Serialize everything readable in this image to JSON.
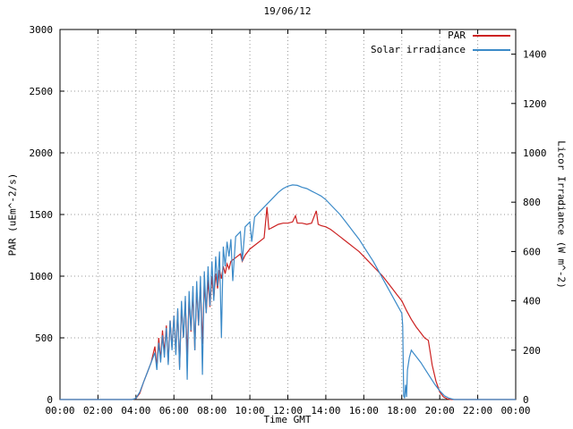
{
  "chart_data": {
    "type": "line",
    "title": "19/06/12",
    "xlabel": "Time GMT",
    "ylabel_left": "PAR (uEm^-2/s)",
    "ylabel_right": "Licor Irradiance (W m^-2)",
    "grid": true,
    "legend_position": "top-right",
    "x_range_hours": [
      0,
      24
    ],
    "y_left_range": [
      0,
      3000
    ],
    "y_right_range": [
      0,
      1500
    ],
    "x_tick_hours": [
      0,
      2,
      4,
      6,
      8,
      10,
      12,
      14,
      16,
      18,
      20,
      22,
      24
    ],
    "x_tick_labels": [
      "00:00",
      "02:00",
      "04:00",
      "06:00",
      "08:00",
      "10:00",
      "12:00",
      "14:00",
      "16:00",
      "18:00",
      "20:00",
      "22:00",
      "00:00"
    ],
    "y_left_ticks": [
      0,
      500,
      1000,
      1500,
      2000,
      2500,
      3000
    ],
    "y_right_ticks": [
      0,
      200,
      400,
      600,
      800,
      1000,
      1200,
      1400
    ],
    "series": [
      {
        "name": "PAR",
        "axis": "left",
        "color": "#cc2222",
        "units": "uEm^-2/s",
        "points": [
          [
            0,
            0
          ],
          [
            0.5,
            0
          ],
          [
            1,
            0
          ],
          [
            1.5,
            0
          ],
          [
            2,
            0
          ],
          [
            2.5,
            0
          ],
          [
            3,
            0
          ],
          [
            3.5,
            0
          ],
          [
            3.8,
            0
          ],
          [
            4.0,
            8
          ],
          [
            4.2,
            50
          ],
          [
            4.4,
            140
          ],
          [
            4.6,
            220
          ],
          [
            4.8,
            300
          ],
          [
            5.0,
            430
          ],
          [
            5.1,
            260
          ],
          [
            5.2,
            500
          ],
          [
            5.3,
            320
          ],
          [
            5.4,
            560
          ],
          [
            5.5,
            380
          ],
          [
            5.6,
            600
          ],
          [
            5.7,
            300
          ],
          [
            5.8,
            640
          ],
          [
            5.9,
            420
          ],
          [
            6.0,
            680
          ],
          [
            6.1,
            380
          ],
          [
            6.2,
            720
          ],
          [
            6.3,
            260
          ],
          [
            6.4,
            760
          ],
          [
            6.5,
            500
          ],
          [
            6.6,
            800
          ],
          [
            6.7,
            350
          ],
          [
            6.8,
            830
          ],
          [
            6.9,
            550
          ],
          [
            7.0,
            870
          ],
          [
            7.1,
            400
          ],
          [
            7.2,
            900
          ],
          [
            7.3,
            600
          ],
          [
            7.4,
            930
          ],
          [
            7.5,
            450
          ],
          [
            7.6,
            950
          ],
          [
            7.7,
            700
          ],
          [
            7.8,
            970
          ],
          [
            7.9,
            750
          ],
          [
            8.0,
            1000
          ],
          [
            8.1,
            820
          ],
          [
            8.2,
            1020
          ],
          [
            8.3,
            900
          ],
          [
            8.4,
            1050
          ],
          [
            8.5,
            980
          ],
          [
            8.6,
            1080
          ],
          [
            8.7,
            1020
          ],
          [
            8.8,
            1100
          ],
          [
            8.9,
            1060
          ],
          [
            9.0,
            1120
          ],
          [
            9.25,
            1150
          ],
          [
            9.5,
            1180
          ],
          [
            9.6,
            1120
          ],
          [
            9.75,
            1170
          ],
          [
            10.0,
            1220
          ],
          [
            10.25,
            1250
          ],
          [
            10.5,
            1280
          ],
          [
            10.75,
            1310
          ],
          [
            10.9,
            1560
          ],
          [
            11.0,
            1380
          ],
          [
            11.25,
            1400
          ],
          [
            11.5,
            1420
          ],
          [
            11.75,
            1430
          ],
          [
            12.0,
            1430
          ],
          [
            12.25,
            1440
          ],
          [
            12.4,
            1490
          ],
          [
            12.5,
            1430
          ],
          [
            12.75,
            1430
          ],
          [
            13.0,
            1420
          ],
          [
            13.25,
            1430
          ],
          [
            13.5,
            1530
          ],
          [
            13.6,
            1420
          ],
          [
            13.75,
            1410
          ],
          [
            14.0,
            1400
          ],
          [
            14.25,
            1380
          ],
          [
            14.5,
            1350
          ],
          [
            14.75,
            1320
          ],
          [
            15.0,
            1290
          ],
          [
            15.25,
            1260
          ],
          [
            15.5,
            1230
          ],
          [
            15.75,
            1200
          ],
          [
            16.0,
            1160
          ],
          [
            16.25,
            1120
          ],
          [
            16.5,
            1080
          ],
          [
            16.75,
            1040
          ],
          [
            17.0,
            1000
          ],
          [
            17.25,
            950
          ],
          [
            17.5,
            900
          ],
          [
            17.75,
            850
          ],
          [
            18.0,
            800
          ],
          [
            18.25,
            720
          ],
          [
            18.5,
            650
          ],
          [
            18.75,
            590
          ],
          [
            19.0,
            540
          ],
          [
            19.2,
            500
          ],
          [
            19.4,
            480
          ],
          [
            19.5,
            380
          ],
          [
            19.6,
            280
          ],
          [
            19.8,
            150
          ],
          [
            20.0,
            60
          ],
          [
            20.2,
            20
          ],
          [
            20.4,
            5
          ],
          [
            20.6,
            0
          ],
          [
            21,
            0
          ],
          [
            21.5,
            0
          ],
          [
            22,
            0
          ],
          [
            22.5,
            0
          ],
          [
            23,
            0
          ],
          [
            23.5,
            0
          ],
          [
            24,
            0
          ]
        ]
      },
      {
        "name": "Solar irradiance",
        "axis": "right",
        "color": "#3b8ac8",
        "units": "W m^-2",
        "points": [
          [
            0,
            0
          ],
          [
            0.5,
            0
          ],
          [
            1,
            0
          ],
          [
            1.5,
            0
          ],
          [
            2,
            0
          ],
          [
            2.5,
            0
          ],
          [
            3,
            0
          ],
          [
            3.5,
            0
          ],
          [
            3.8,
            0
          ],
          [
            4.0,
            5
          ],
          [
            4.2,
            30
          ],
          [
            4.4,
            70
          ],
          [
            4.6,
            110
          ],
          [
            4.8,
            150
          ],
          [
            5.0,
            190
          ],
          [
            5.1,
            120
          ],
          [
            5.2,
            230
          ],
          [
            5.3,
            150
          ],
          [
            5.4,
            260
          ],
          [
            5.5,
            170
          ],
          [
            5.6,
            290
          ],
          [
            5.7,
            140
          ],
          [
            5.8,
            320
          ],
          [
            5.9,
            200
          ],
          [
            6.0,
            340
          ],
          [
            6.1,
            180
          ],
          [
            6.2,
            370
          ],
          [
            6.3,
            120
          ],
          [
            6.4,
            400
          ],
          [
            6.5,
            250
          ],
          [
            6.6,
            420
          ],
          [
            6.7,
            80
          ],
          [
            6.8,
            440
          ],
          [
            6.9,
            280
          ],
          [
            7.0,
            460
          ],
          [
            7.1,
            200
          ],
          [
            7.2,
            480
          ],
          [
            7.3,
            300
          ],
          [
            7.4,
            500
          ],
          [
            7.5,
            100
          ],
          [
            7.6,
            520
          ],
          [
            7.7,
            350
          ],
          [
            7.8,
            540
          ],
          [
            7.9,
            380
          ],
          [
            8.0,
            560
          ],
          [
            8.1,
            400
          ],
          [
            8.2,
            580
          ],
          [
            8.3,
            460
          ],
          [
            8.4,
            600
          ],
          [
            8.5,
            250
          ],
          [
            8.6,
            620
          ],
          [
            8.7,
            540
          ],
          [
            8.8,
            640
          ],
          [
            8.9,
            580
          ],
          [
            9.0,
            650
          ],
          [
            9.1,
            480
          ],
          [
            9.25,
            660
          ],
          [
            9.5,
            680
          ],
          [
            9.6,
            560
          ],
          [
            9.75,
            700
          ],
          [
            10.0,
            720
          ],
          [
            10.1,
            640
          ],
          [
            10.25,
            740
          ],
          [
            10.5,
            760
          ],
          [
            10.75,
            780
          ],
          [
            11.0,
            800
          ],
          [
            11.25,
            820
          ],
          [
            11.5,
            840
          ],
          [
            11.75,
            855
          ],
          [
            12.0,
            865
          ],
          [
            12.25,
            870
          ],
          [
            12.5,
            868
          ],
          [
            12.75,
            860
          ],
          [
            13.0,
            855
          ],
          [
            13.25,
            845
          ],
          [
            13.5,
            835
          ],
          [
            13.75,
            825
          ],
          [
            14.0,
            810
          ],
          [
            14.25,
            790
          ],
          [
            14.5,
            770
          ],
          [
            14.75,
            750
          ],
          [
            15.0,
            725
          ],
          [
            15.25,
            700
          ],
          [
            15.5,
            675
          ],
          [
            15.75,
            650
          ],
          [
            16.0,
            620
          ],
          [
            16.25,
            590
          ],
          [
            16.5,
            560
          ],
          [
            16.75,
            525
          ],
          [
            17.0,
            490
          ],
          [
            17.25,
            455
          ],
          [
            17.5,
            420
          ],
          [
            17.75,
            385
          ],
          [
            18.0,
            350
          ],
          [
            18.05,
            300
          ],
          [
            18.1,
            15
          ],
          [
            18.15,
            5
          ],
          [
            18.2,
            60
          ],
          [
            18.25,
            10
          ],
          [
            18.3,
            120
          ],
          [
            18.4,
            170
          ],
          [
            18.5,
            200
          ],
          [
            18.6,
            190
          ],
          [
            18.75,
            175
          ],
          [
            19.0,
            150
          ],
          [
            19.25,
            120
          ],
          [
            19.5,
            90
          ],
          [
            19.75,
            60
          ],
          [
            20.0,
            35
          ],
          [
            20.25,
            15
          ],
          [
            20.5,
            5
          ],
          [
            20.75,
            0
          ],
          [
            21,
            0
          ],
          [
            21.5,
            0
          ],
          [
            22,
            0
          ],
          [
            22.5,
            0
          ],
          [
            23,
            0
          ],
          [
            23.5,
            0
          ],
          [
            24,
            0
          ]
        ]
      }
    ]
  }
}
